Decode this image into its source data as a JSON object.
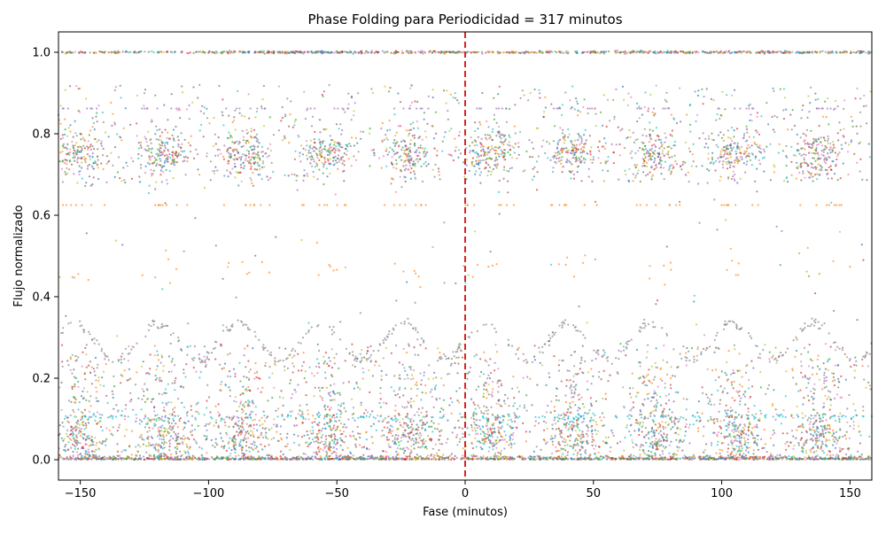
{
  "chart_data": {
    "type": "scatter",
    "title": "Phase Folding para Periodicidad = 317 minutos",
    "xlabel": "Fase (minutos)",
    "ylabel": "Flujo normalizado",
    "xlim": [
      -158.5,
      158.5
    ],
    "ylim": [
      -0.05,
      1.05
    ],
    "x_ticks": [
      -150,
      -100,
      -50,
      0,
      50,
      100,
      150
    ],
    "x_tick_labels": [
      "−150",
      "−100",
      "−50",
      "0",
      "50",
      "100",
      "150"
    ],
    "y_ticks": [
      0.0,
      0.2,
      0.4,
      0.6,
      0.8,
      1.0
    ],
    "y_tick_labels": [
      "0.0",
      "0.2",
      "0.4",
      "0.6",
      "0.8",
      "1.0"
    ],
    "grid": false,
    "legend": "none",
    "reference_line": {
      "x": 0,
      "color": "#d62728",
      "style": "dashed"
    },
    "series_colors": [
      "#1f77b4",
      "#ff7f0e",
      "#2ca02c",
      "#d62728",
      "#9467bd",
      "#8c564b",
      "#e377c2",
      "#7f7f7f",
      "#bcbd22",
      "#17becf"
    ],
    "cluster_centers_x": [
      -150,
      -118,
      -86,
      -54,
      -22,
      10,
      42,
      74,
      106,
      138
    ],
    "flux_bands": [
      {
        "y": 1.0,
        "spread": 0.002,
        "density": "very high",
        "x_range": [
          -158.5,
          158.5
        ]
      },
      {
        "y": 0.86,
        "spread": 0.004,
        "density": "sparse",
        "color": "#9467bd"
      },
      {
        "y": 0.75,
        "spread": 0.03,
        "density": "high",
        "clustered": true
      },
      {
        "y": 0.625,
        "spread": 0.002,
        "density": "sparse",
        "color": "#ff7f0e"
      },
      {
        "y": 0.47,
        "spread": 0.03,
        "density": "sparse",
        "color": "#ff7f0e"
      },
      {
        "y": 0.29,
        "spread": 0.05,
        "density": "medium",
        "color": "#7f7f7f",
        "sinusoidal": true
      },
      {
        "y": 0.18,
        "spread": 0.04,
        "density": "medium",
        "clustered": true
      },
      {
        "y": 0.06,
        "spread": 0.04,
        "density": "very high",
        "clustered": true
      },
      {
        "y": 0.0,
        "spread": 0.005,
        "density": "very high",
        "x_range": [
          -158.5,
          158.5
        ]
      }
    ]
  }
}
